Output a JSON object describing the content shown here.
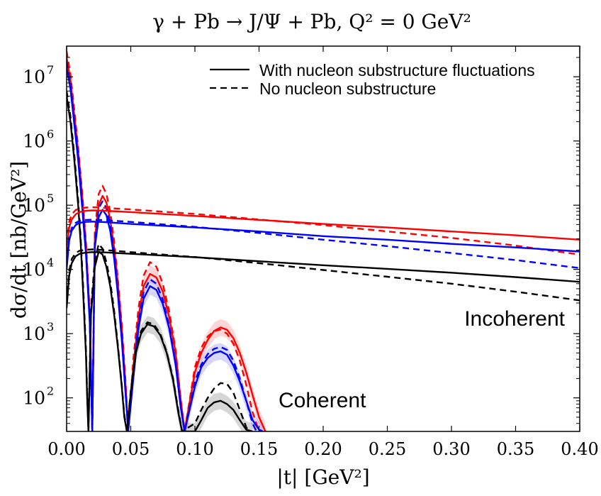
{
  "chart_data": {
    "type": "line",
    "title": "γ + Pb → J/Ψ + Pb, Q² = 0 GeV²",
    "xlabel": "|t| [GeV²]",
    "ylabel": "dσ/dt [nb/GeV²]",
    "xlim": [
      0.0,
      0.4
    ],
    "ylim": [
      30,
      30000000
    ],
    "yscale": "log",
    "xticks": [
      0.0,
      0.05,
      0.1,
      0.15,
      0.2,
      0.25,
      0.3,
      0.35,
      0.4
    ],
    "xtick_labels": [
      "0.00",
      "0.05",
      "0.10",
      "0.15",
      "0.20",
      "0.25",
      "0.30",
      "0.35",
      "0.40"
    ],
    "yticks": [
      100,
      1000,
      10000,
      100000,
      1000000,
      10000000
    ],
    "ytick_labels": [
      {
        "base": "10",
        "exp": "2"
      },
      {
        "base": "10",
        "exp": "3"
      },
      {
        "base": "10",
        "exp": "4"
      },
      {
        "base": "10",
        "exp": "5"
      },
      {
        "base": "10",
        "exp": "6"
      },
      {
        "base": "10",
        "exp": "7"
      }
    ],
    "legend": {
      "placement": "top-right",
      "entries": [
        {
          "label": "With nucleon substructure fluctuations",
          "style": "solid",
          "color": "#000000"
        },
        {
          "label": "No nucleon substructure",
          "style": "dashed",
          "color": "#000000"
        }
      ]
    },
    "annotations": [
      {
        "text": "Incoherent",
        "x": 0.383,
        "y": 1500
      },
      {
        "text": "Coherent",
        "x": 0.142,
        "y": 70
      }
    ],
    "series": [
      {
        "name": "coherent-red-fluct",
        "color": "#ff0000",
        "style": "solid",
        "kind": "coherent",
        "x": [
          0.0,
          0.003,
          0.006,
          0.009,
          0.012,
          0.015,
          0.018,
          0.02,
          0.022,
          0.025,
          0.028,
          0.031,
          0.034,
          0.037,
          0.04,
          0.043,
          0.046,
          0.048,
          0.052,
          0.056,
          0.06,
          0.065,
          0.07,
          0.075,
          0.08,
          0.085,
          0.089,
          0.092,
          0.1,
          0.105,
          0.11,
          0.115,
          0.12,
          0.125,
          0.13,
          0.135,
          0.14,
          0.145,
          0.15,
          0.155
        ],
        "y": [
          20000000,
          9000000,
          2500000,
          700000,
          150000,
          25000,
          2000,
          30,
          30000,
          100000,
          140000,
          110000,
          60000,
          22000,
          6000,
          1200,
          150,
          30,
          300,
          1800,
          5500,
          8500,
          7500,
          4500,
          1800,
          500,
          90,
          30,
          250,
          500,
          800,
          1100,
          1250,
          1150,
          850,
          500,
          250,
          110,
          50,
          30
        ]
      },
      {
        "name": "coherent-red-nosub",
        "color": "#ff0000",
        "style": "dashed",
        "kind": "coherent",
        "x": [
          0.0,
          0.003,
          0.006,
          0.009,
          0.012,
          0.015,
          0.018,
          0.02,
          0.022,
          0.025,
          0.028,
          0.031,
          0.034,
          0.037,
          0.04,
          0.043,
          0.046,
          0.048,
          0.052,
          0.056,
          0.06,
          0.065,
          0.07,
          0.075,
          0.08,
          0.085,
          0.089,
          0.092,
          0.1,
          0.105,
          0.11,
          0.115,
          0.12,
          0.125,
          0.13,
          0.135,
          0.14,
          0.145,
          0.15
        ],
        "y": [
          25000000,
          11000000,
          3000000,
          800000,
          170000,
          28000,
          2200,
          30,
          40000,
          150000,
          200000,
          150000,
          80000,
          28000,
          7000,
          1400,
          170,
          30,
          400,
          2500,
          8000,
          13000,
          11000,
          6000,
          2200,
          550,
          95,
          30,
          300,
          600,
          900,
          1100,
          1150,
          1000,
          700,
          380,
          160,
          60,
          30
        ]
      },
      {
        "name": "coherent-blue-fluct",
        "color": "#0000ff",
        "style": "solid",
        "kind": "coherent",
        "x": [
          0.0,
          0.003,
          0.006,
          0.009,
          0.012,
          0.015,
          0.018,
          0.02,
          0.022,
          0.025,
          0.028,
          0.031,
          0.034,
          0.037,
          0.04,
          0.043,
          0.046,
          0.048,
          0.052,
          0.056,
          0.06,
          0.065,
          0.07,
          0.075,
          0.08,
          0.085,
          0.089,
          0.092,
          0.1,
          0.105,
          0.11,
          0.115,
          0.12,
          0.125,
          0.13,
          0.135,
          0.14,
          0.145,
          0.15,
          0.153
        ],
        "y": [
          14000000,
          6500000,
          1800000,
          500000,
          100000,
          18000,
          1500,
          30,
          22000,
          65000,
          85000,
          70000,
          40000,
          15000,
          4000,
          800,
          110,
          30,
          200,
          1200,
          3500,
          5500,
          4800,
          2900,
          1200,
          330,
          70,
          30,
          150,
          300,
          420,
          500,
          530,
          470,
          320,
          180,
          90,
          45,
          32,
          30
        ]
      },
      {
        "name": "coherent-blue-nosub",
        "color": "#0000ff",
        "style": "dashed",
        "kind": "coherent",
        "x": [
          0.0,
          0.003,
          0.006,
          0.009,
          0.012,
          0.015,
          0.018,
          0.02,
          0.022,
          0.025,
          0.028,
          0.031,
          0.034,
          0.037,
          0.04,
          0.043,
          0.046,
          0.048,
          0.052,
          0.056,
          0.06,
          0.065,
          0.07,
          0.075,
          0.08,
          0.085,
          0.089,
          0.092,
          0.1,
          0.105,
          0.11,
          0.115,
          0.12,
          0.125,
          0.13,
          0.135,
          0.14,
          0.145,
          0.148
        ],
        "y": [
          17000000,
          7500000,
          2100000,
          600000,
          120000,
          20000,
          1700,
          30,
          27000,
          90000,
          115000,
          90000,
          50000,
          18000,
          4500,
          900,
          120,
          30,
          240,
          1500,
          4500,
          7000,
          6000,
          3400,
          1300,
          350,
          70,
          30,
          180,
          330,
          480,
          580,
          620,
          560,
          380,
          200,
          90,
          40,
          30
        ]
      },
      {
        "name": "coherent-black-fluct",
        "color": "#000000",
        "style": "solid",
        "kind": "coherent",
        "x": [
          0.0,
          0.003,
          0.006,
          0.009,
          0.011,
          0.013,
          0.015,
          0.016,
          0.017,
          0.019,
          0.022,
          0.025,
          0.028,
          0.031,
          0.034,
          0.037,
          0.04,
          0.043,
          0.045,
          0.047,
          0.05,
          0.054,
          0.058,
          0.063,
          0.068,
          0.073,
          0.078,
          0.083,
          0.087,
          0.09,
          0.1,
          0.105,
          0.11,
          0.115,
          0.12,
          0.125,
          0.13,
          0.135,
          0.14,
          0.145
        ],
        "y": [
          5000000,
          2000000,
          500000,
          100000,
          25000,
          4000,
          500,
          100,
          30,
          2000,
          11000,
          19000,
          17000,
          11000,
          5500,
          2000,
          600,
          150,
          50,
          30,
          120,
          500,
          1000,
          1400,
          1300,
          950,
          500,
          190,
          60,
          30,
          30,
          45,
          70,
          85,
          90,
          80,
          65,
          45,
          32,
          30
        ]
      },
      {
        "name": "coherent-black-nosub",
        "color": "#000000",
        "style": "dashed",
        "kind": "coherent",
        "x": [
          0.0,
          0.003,
          0.006,
          0.009,
          0.011,
          0.013,
          0.015,
          0.016,
          0.017,
          0.019,
          0.022,
          0.025,
          0.028,
          0.031,
          0.034,
          0.037,
          0.04,
          0.043,
          0.045,
          0.047,
          0.05,
          0.054,
          0.058,
          0.063,
          0.068,
          0.073,
          0.078,
          0.083,
          0.087,
          0.09,
          0.1,
          0.105,
          0.11,
          0.115,
          0.12,
          0.125,
          0.13,
          0.135,
          0.14,
          0.142
        ],
        "y": [
          6000000,
          2400000,
          600000,
          120000,
          30000,
          5000,
          600,
          120,
          30,
          2500,
          14000,
          25000,
          21000,
          13000,
          6500,
          2300,
          650,
          160,
          55,
          30,
          130,
          550,
          1100,
          1500,
          1400,
          1000,
          520,
          200,
          65,
          30,
          40,
          65,
          100,
          140,
          170,
          165,
          120,
          65,
          35,
          30
        ]
      },
      {
        "name": "incoherent-red-fluct",
        "color": "#ff0000",
        "style": "solid",
        "kind": "incoherent",
        "x": [
          0.0,
          0.002,
          0.004,
          0.007,
          0.01,
          0.015,
          0.02,
          0.03,
          0.05,
          0.1,
          0.15,
          0.2,
          0.25,
          0.3,
          0.35,
          0.4
        ],
        "y": [
          20000,
          45000,
          60000,
          72000,
          78000,
          82000,
          83000,
          82000,
          78000,
          68000,
          59000,
          51000,
          45000,
          39000,
          34000,
          29000
        ]
      },
      {
        "name": "incoherent-red-nosub",
        "color": "#ff0000",
        "style": "dashed",
        "kind": "incoherent",
        "x": [
          0.0,
          0.002,
          0.004,
          0.007,
          0.01,
          0.015,
          0.02,
          0.03,
          0.05,
          0.1,
          0.15,
          0.2,
          0.25,
          0.3,
          0.35,
          0.4
        ],
        "y": [
          25000,
          55000,
          72000,
          84000,
          89000,
          92000,
          93000,
          91000,
          86000,
          73000,
          60000,
          49000,
          39000,
          31000,
          23500,
          17000
        ]
      },
      {
        "name": "incoherent-blue-fluct",
        "color": "#0000ff",
        "style": "solid",
        "kind": "incoherent",
        "x": [
          0.0,
          0.002,
          0.004,
          0.007,
          0.01,
          0.015,
          0.02,
          0.03,
          0.05,
          0.1,
          0.15,
          0.2,
          0.25,
          0.3,
          0.35,
          0.4
        ],
        "y": [
          10000,
          28000,
          40000,
          49000,
          53000,
          55000,
          55500,
          54500,
          51000,
          45000,
          39000,
          33000,
          29000,
          25000,
          22000,
          19000
        ]
      },
      {
        "name": "incoherent-blue-nosub",
        "color": "#0000ff",
        "style": "dashed",
        "kind": "incoherent",
        "x": [
          0.0,
          0.002,
          0.004,
          0.007,
          0.01,
          0.015,
          0.02,
          0.03,
          0.05,
          0.1,
          0.15,
          0.2,
          0.25,
          0.3,
          0.35,
          0.4
        ],
        "y": [
          12000,
          32000,
          44000,
          53000,
          57000,
          59000,
          59500,
          58500,
          55000,
          46000,
          37000,
          29000,
          23000,
          18000,
          14000,
          10500
        ]
      },
      {
        "name": "incoherent-black-fluct",
        "color": "#000000",
        "style": "solid",
        "kind": "incoherent",
        "x": [
          0.0,
          0.002,
          0.004,
          0.007,
          0.01,
          0.015,
          0.02,
          0.03,
          0.05,
          0.1,
          0.15,
          0.2,
          0.25,
          0.3,
          0.35,
          0.4
        ],
        "y": [
          2500,
          8000,
          12500,
          16000,
          17500,
          18300,
          18600,
          18400,
          17500,
          15500,
          13400,
          11600,
          10200,
          8900,
          7600,
          6400
        ]
      },
      {
        "name": "incoherent-black-nosub",
        "color": "#000000",
        "style": "dashed",
        "kind": "incoherent",
        "x": [
          0.0,
          0.002,
          0.004,
          0.007,
          0.01,
          0.015,
          0.02,
          0.03,
          0.05,
          0.1,
          0.15,
          0.2,
          0.25,
          0.3,
          0.35,
          0.4
        ],
        "y": [
          3000,
          9500,
          14500,
          18000,
          19500,
          20300,
          20500,
          20000,
          18600,
          15600,
          12500,
          9800,
          7700,
          6000,
          4500,
          3300
        ]
      }
    ]
  }
}
